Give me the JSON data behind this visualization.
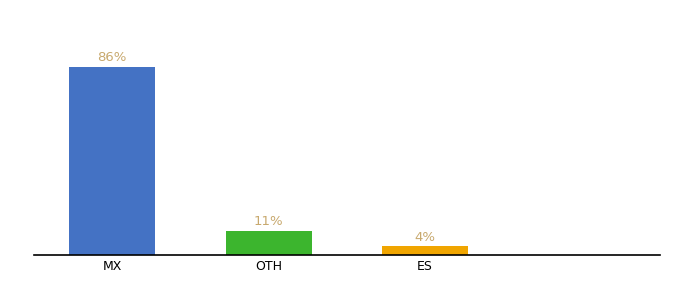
{
  "categories": [
    "MX",
    "OTH",
    "ES"
  ],
  "values": [
    86,
    11,
    4
  ],
  "bar_colors": [
    "#4472c4",
    "#3cb52e",
    "#f0a500"
  ],
  "label_color": "#c8a96e",
  "value_labels": [
    "86%",
    "11%",
    "4%"
  ],
  "ylim": [
    0,
    100
  ],
  "background_color": "#ffffff",
  "bar_width": 0.55,
  "label_fontsize": 9.5,
  "tick_fontsize": 9,
  "x_positions": [
    1,
    2,
    3
  ]
}
